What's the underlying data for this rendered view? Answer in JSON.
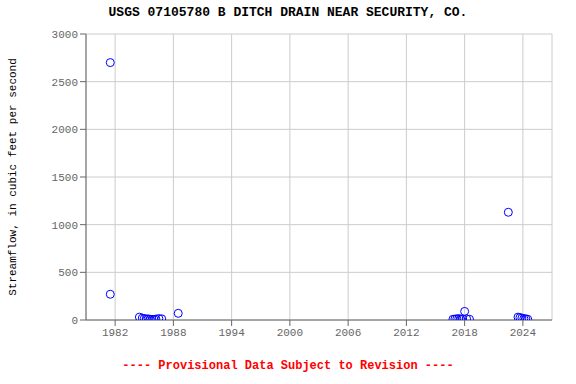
{
  "chart_data": {
    "type": "scatter",
    "title": "USGS 07105780 B DITCH DRAIN NEAR SECURITY, CO.",
    "ylabel": "Streamflow, in cubic feet per second",
    "annotations": [
      {
        "text": "---- Provisional Data Subject to Revision ----",
        "color": "#ff0000"
      }
    ],
    "x": [
      1981.5,
      1981.5,
      1984.5,
      1984.8,
      1985.0,
      1985.2,
      1985.4,
      1985.6,
      1985.8,
      1986.0,
      1986.2,
      1986.5,
      1986.8,
      1988.5,
      2016.8,
      2017.0,
      2017.2,
      2017.4,
      2017.6,
      2017.8,
      2018.0,
      2018.2,
      2018.5,
      2022.5,
      2023.5,
      2023.7,
      2023.9,
      2024.1,
      2024.3,
      2024.5
    ],
    "values": [
      2700,
      270,
      30,
      20,
      15,
      10,
      12,
      8,
      5,
      7,
      10,
      15,
      12,
      70,
      8,
      10,
      12,
      15,
      8,
      10,
      90,
      12,
      8,
      1130,
      30,
      25,
      20,
      15,
      12,
      8
    ],
    "color": "#0000ff",
    "marker": "open_circle",
    "xlim": [
      1979,
      2027
    ],
    "ylim": [
      0,
      3000
    ],
    "xticks": [
      1982,
      1988,
      1994,
      2000,
      2006,
      2012,
      2018,
      2024
    ],
    "yticks": [
      0,
      500,
      1000,
      1500,
      2000,
      2500,
      3000
    ],
    "grid": true
  }
}
